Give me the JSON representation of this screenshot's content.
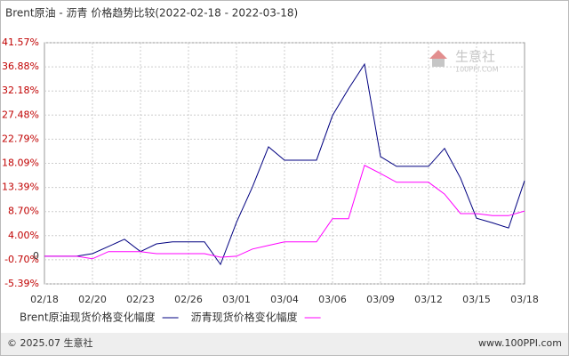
{
  "chart_data": {
    "type": "line",
    "title": "Brent原油 - 沥青 价格趋势比较(2022-02-18 - 2022-03-18)",
    "categories": [
      "02/18",
      null,
      null,
      "02/20",
      null,
      null,
      "02/23",
      null,
      null,
      "02/26",
      null,
      null,
      "03/01",
      null,
      null,
      "03/04",
      null,
      null,
      "03/06",
      null,
      null,
      "03/09",
      null,
      null,
      "03/12",
      null,
      null,
      "03/15",
      null,
      null,
      "03/18"
    ],
    "series": [
      {
        "name": "Brent原油现货价格变化幅度",
        "color": "#000080",
        "values": [
          0,
          0,
          0,
          0.5,
          1.9,
          3.3,
          0.9,
          2.4,
          2.8,
          2.8,
          2.8,
          -1.6,
          6.6,
          13.5,
          21.3,
          18.7,
          18.7,
          18.7,
          27.4,
          32.6,
          37.4,
          19.4,
          17.5,
          17.5,
          17.5,
          21.0,
          15.2,
          7.4,
          6.5,
          5.5,
          14.7
        ]
      },
      {
        "name": "沥青现货价格变化幅度",
        "color": "#ff00ff",
        "values": [
          0,
          0,
          0,
          -0.5,
          0.9,
          0.9,
          0.9,
          0.5,
          0.5,
          0.5,
          0.5,
          -0.2,
          0,
          1.4,
          2.1,
          2.8,
          2.8,
          2.8,
          7.3,
          7.3,
          17.7,
          16.1,
          14.4,
          14.4,
          14.4,
          12.1,
          8.3,
          8.3,
          7.9,
          7.9,
          8.8
        ]
      }
    ],
    "ylim": [
      -5.39,
      41.57
    ],
    "yticks": [
      {
        "value": -5.39,
        "label": "-5.39%"
      },
      {
        "value": -0.7,
        "label": "-0.70%"
      },
      0,
      {
        "value": 4.0,
        "label": "4.00%"
      },
      {
        "value": 8.7,
        "label": "8.70%"
      },
      {
        "value": 13.39,
        "label": "13.39%"
      },
      {
        "value": 18.09,
        "label": "18.09%"
      },
      {
        "value": 22.79,
        "label": "22.79%"
      },
      {
        "value": 27.48,
        "label": "27.48%"
      },
      {
        "value": 32.18,
        "label": "32.18%"
      },
      {
        "value": 36.88,
        "label": "36.88%"
      },
      {
        "value": 41.57,
        "label": "41.57%"
      }
    ],
    "grid": true,
    "legend": "bottom",
    "watermark": {
      "name": "生意社",
      "site": "100PPI.COM"
    },
    "footer": {
      "left": "© 2025.07 生意社",
      "right": "www.100PPI.com"
    }
  }
}
